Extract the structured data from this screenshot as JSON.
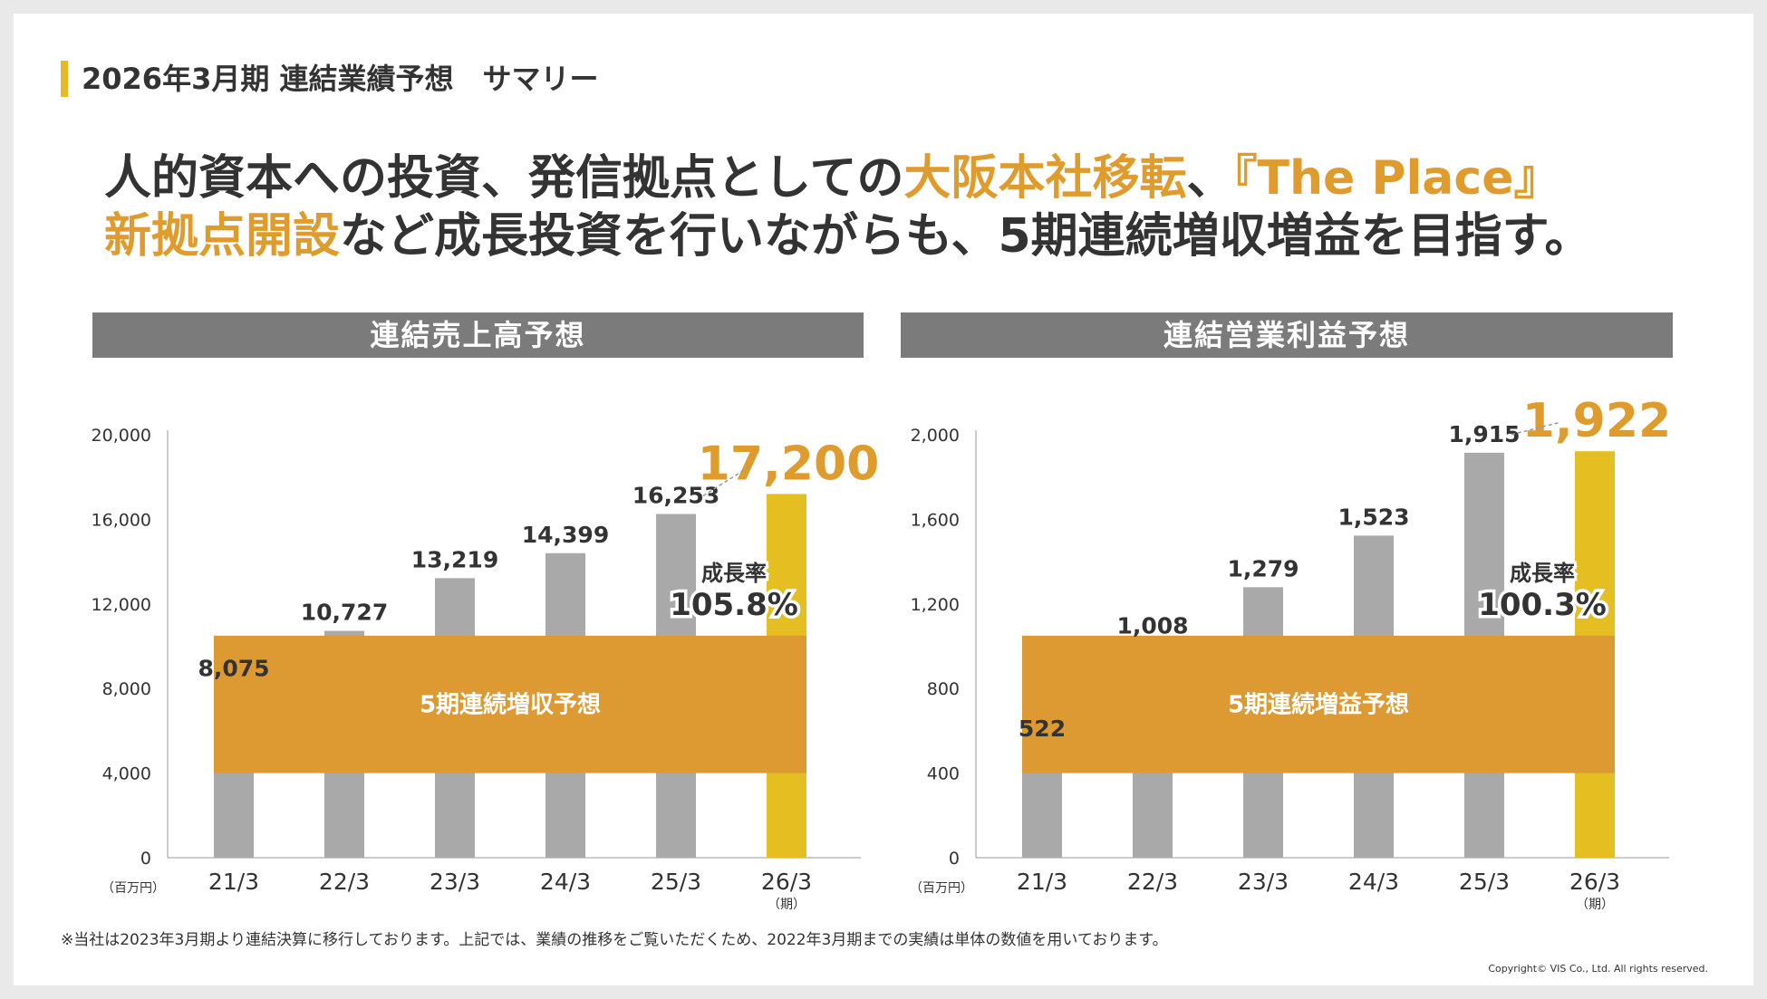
{
  "section_title": "2026年3月期 連結業績予想　サマリー",
  "headline": {
    "line1": [
      {
        "text": "人的資本への投資、発信拠点としての",
        "highlight": false
      },
      {
        "text": "大阪本社移転",
        "highlight": true
      },
      {
        "text": "、",
        "highlight": false
      },
      {
        "text": "『The Place』",
        "highlight": true
      }
    ],
    "line2": [
      {
        "text": "新拠点開設",
        "highlight": true
      },
      {
        "text": "など成長投資を行いながらも、5期連続増収増益を目指す。",
        "highlight": false
      }
    ]
  },
  "colors": {
    "bar_actual": "#a9a9a9",
    "bar_forecast": "#e5bf22",
    "band": "#dd9a33",
    "accent": "#e09b2d",
    "header_bg": "#7b7b7b"
  },
  "chart_data": [
    {
      "type": "bar",
      "title": "連結売上高予想",
      "categories": [
        "21/3",
        "22/3",
        "23/3",
        "24/3",
        "25/3",
        "26/3"
      ],
      "values": [
        8075,
        10727,
        13219,
        14399,
        16253,
        17200
      ],
      "value_labels": [
        "8,075",
        "10,727",
        "13,219",
        "14,399",
        "16,253",
        "17,200"
      ],
      "forecast_index": 5,
      "ylim": [
        0,
        20000
      ],
      "yticks": [
        0,
        4000,
        8000,
        12000,
        16000,
        20000
      ],
      "ytick_labels": [
        "0",
        "4,000",
        "8,000",
        "12,000",
        "16,000",
        "20,000"
      ],
      "ylabel": "（百万円）",
      "xlabel": "（期）",
      "band_label": "5期連続増収予想",
      "growth_label": "成長率",
      "growth_value": "105.8%"
    },
    {
      "type": "bar",
      "title": "連結営業利益予想",
      "categories": [
        "21/3",
        "22/3",
        "23/3",
        "24/3",
        "25/3",
        "26/3"
      ],
      "values": [
        522,
        1008,
        1279,
        1523,
        1915,
        1922
      ],
      "value_labels": [
        "522",
        "1,008",
        "1,279",
        "1,523",
        "1,915",
        "1,922"
      ],
      "forecast_index": 5,
      "ylim": [
        0,
        2000
      ],
      "yticks": [
        0,
        400,
        800,
        1200,
        1600,
        2000
      ],
      "ytick_labels": [
        "0",
        "400",
        "800",
        "1,200",
        "1,600",
        "2,000"
      ],
      "ylabel": "（百万円）",
      "xlabel": "（期）",
      "band_label": "5期連続増益予想",
      "growth_label": "成長率",
      "growth_value": "100.3%"
    }
  ],
  "footnote": "※当社は2023年3月期より連結決算に移行しております。上記では、業績の推移をご覧いただくため、2022年3月期までの実績は単体の数値を用いております。",
  "copyright": "Copyright© VIS Co., Ltd. All rights reserved."
}
